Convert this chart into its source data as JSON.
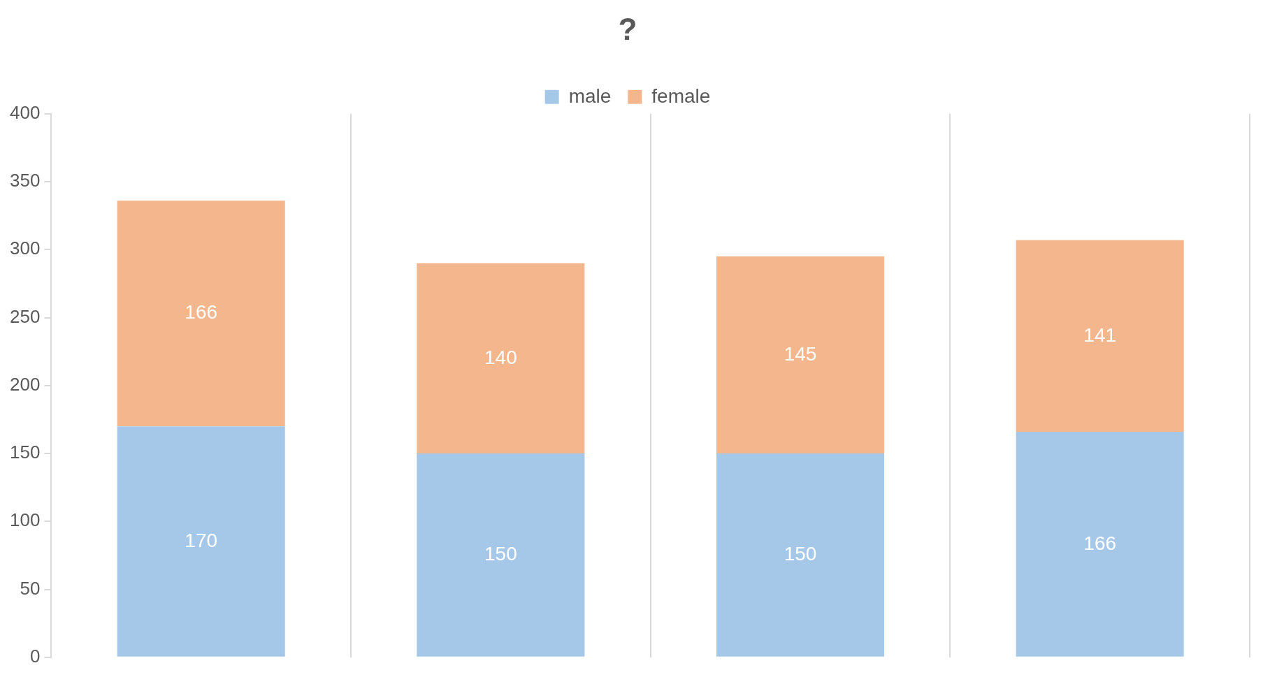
{
  "chart_data": {
    "type": "bar",
    "title": "?",
    "stacked": true,
    "categories": [
      null,
      null,
      null,
      null
    ],
    "series": [
      {
        "name": "male",
        "color": "#a6c8e8",
        "values": [
          170,
          150,
          150,
          166
        ]
      },
      {
        "name": "female",
        "color": "#f4b68c",
        "values": [
          166,
          140,
          145,
          141
        ]
      }
    ],
    "ylim": [
      0,
      400
    ],
    "yticks": [
      0,
      50,
      100,
      150,
      200,
      250,
      300,
      350,
      400
    ],
    "grid": "x",
    "legend": "top",
    "data_labels": true
  }
}
